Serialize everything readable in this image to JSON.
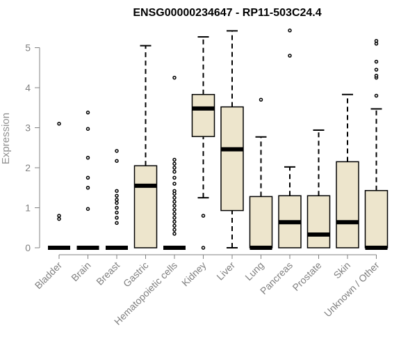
{
  "chart_data": {
    "type": "boxplot",
    "title": "ENSG00000234647 - RP11-503C24.4",
    "xlabel": "",
    "ylabel": "Expression",
    "ylim": [
      0,
      5.4
    ],
    "yticks": [
      0,
      1,
      2,
      3,
      4,
      5
    ],
    "grid": false,
    "colors": {
      "box_fill": "#ede5cc",
      "stroke": "#000000",
      "axis": "#808080"
    },
    "categories": [
      "Bladder",
      "Brain",
      "Breast",
      "Gastric",
      "Hematopoietic cells",
      "Kidney",
      "Liver",
      "Lung",
      "Pancreas",
      "Prostate",
      "Skin",
      "Unknown / Other"
    ],
    "boxes": [
      {
        "category": "Bladder",
        "min": 0,
        "q1": 0,
        "median": 0,
        "q3": 0,
        "max": 0,
        "outliers": [
          0.72,
          0.8,
          3.1
        ]
      },
      {
        "category": "Brain",
        "min": 0,
        "q1": 0,
        "median": 0,
        "q3": 0,
        "max": 0,
        "outliers": [
          0.97,
          1.5,
          1.75,
          2.25,
          2.97,
          3.38
        ]
      },
      {
        "category": "Breast",
        "min": 0,
        "q1": 0,
        "median": 0,
        "q3": 0,
        "max": 0,
        "outliers": [
          0.62,
          0.75,
          0.88,
          1.0,
          1.12,
          1.2,
          1.3,
          1.42,
          2.17,
          2.42
        ]
      },
      {
        "category": "Gastric",
        "min": 0,
        "q1": 0,
        "median": 1.55,
        "q3": 2.05,
        "max": 5.05,
        "outliers": []
      },
      {
        "category": "Hematopoietic cells",
        "min": 0,
        "q1": 0,
        "median": 0,
        "q3": 0,
        "max": 0,
        "outliers": [
          0.35,
          0.45,
          0.55,
          0.65,
          0.75,
          0.85,
          0.95,
          1.05,
          1.15,
          1.25,
          1.35,
          1.42,
          1.6,
          1.75,
          1.9,
          2.0,
          2.1,
          2.2,
          4.25
        ]
      },
      {
        "category": "Kidney",
        "min": 1.25,
        "q1": 2.78,
        "median": 3.48,
        "q3": 3.83,
        "max": 5.27,
        "outliers": [
          0,
          0.8
        ]
      },
      {
        "category": "Liver",
        "min": 0,
        "q1": 0.93,
        "median": 2.46,
        "q3": 3.52,
        "max": 5.42,
        "outliers": []
      },
      {
        "category": "Lung",
        "min": 0,
        "q1": 0,
        "median": 0,
        "q3": 1.28,
        "max": 2.77,
        "outliers": [
          3.7
        ]
      },
      {
        "category": "Pancreas",
        "min": 0,
        "q1": 0,
        "median": 0.64,
        "q3": 1.3,
        "max": 2.02,
        "outliers": [
          4.8,
          5.43
        ]
      },
      {
        "category": "Prostate",
        "min": 0,
        "q1": 0,
        "median": 0.33,
        "q3": 1.3,
        "max": 2.94,
        "outliers": []
      },
      {
        "category": "Skin",
        "min": 0,
        "q1": 0,
        "median": 0.64,
        "q3": 2.15,
        "max": 3.83,
        "outliers": []
      },
      {
        "category": "Unknown / Other",
        "min": 0,
        "q1": 0,
        "median": 0,
        "q3": 1.43,
        "max": 3.47,
        "outliers": [
          3.8,
          4.25,
          4.3,
          4.45,
          4.65,
          5.1,
          5.17
        ]
      }
    ]
  }
}
